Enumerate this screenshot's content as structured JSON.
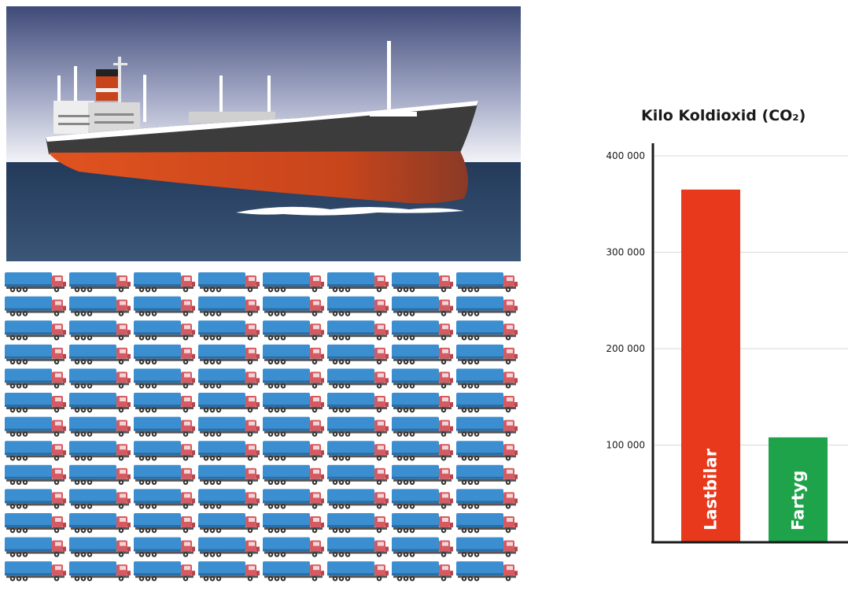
{
  "chart_data": {
    "type": "bar",
    "title": "Kilo Koldioxid (CO₂)",
    "categories": [
      "Lastbilar",
      "Fartyg"
    ],
    "values": [
      365000,
      108000
    ],
    "colors": [
      "#e8391d",
      "#1ea34a"
    ],
    "ylim": [
      0,
      400000
    ],
    "yticks": [
      100000,
      200000,
      300000,
      400000
    ],
    "ytick_labels": [
      "100 000",
      "200 000",
      "300 000",
      "400 000"
    ],
    "grid": true,
    "xlabel": "",
    "ylabel": ""
  },
  "illustration": {
    "ship_icon": "cargo-ship-icon",
    "truck_icon": "truck-icon",
    "truck_grid": {
      "columns": 8,
      "rows": 13
    },
    "colors": {
      "sky_top": "#3f4a78",
      "sky_bottom": "#f2f3f8",
      "sea": "#304a6c",
      "hull_red": "#d4471c",
      "hull_dark": "#3c3c3c",
      "truck_blue": "#3b8fd1",
      "truck_cab": "#d65a62"
    }
  }
}
